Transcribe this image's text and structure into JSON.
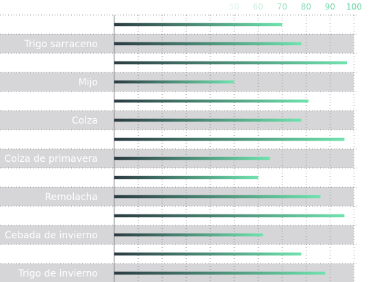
{
  "chart_data": {
    "type": "bar",
    "orientation": "horizontal",
    "categories": [
      "",
      "Trigo sarraceno",
      "",
      "Mijo",
      "",
      "Colza",
      "",
      "Colza de primavera",
      "",
      "Remolacha",
      "",
      "Cebada de invierno",
      "",
      "Trigo de invierno"
    ],
    "values": [
      70,
      78,
      97,
      50,
      81,
      78,
      96,
      65,
      60,
      86,
      96,
      62,
      78,
      88
    ],
    "x_ticks": [
      50,
      60,
      70,
      80,
      90,
      100
    ],
    "x_tick_labels": [
      "50",
      "60",
      "70",
      "80",
      "90",
      "100"
    ],
    "xlim": [
      0,
      100
    ],
    "grid": true,
    "title": "",
    "xlabel": "",
    "ylabel": "",
    "colors": {
      "bar_start": "#2b3b43",
      "bar_end": "#6fe3ae",
      "band": "#d6d6d8",
      "label": "#ffffff",
      "grid": "#8a8a8a",
      "tick_colors": [
        "#dff6ea",
        "#c7efd9",
        "#9fe3c4",
        "#86dcb6",
        "#74d8aa",
        "#5fd39e"
      ]
    }
  }
}
